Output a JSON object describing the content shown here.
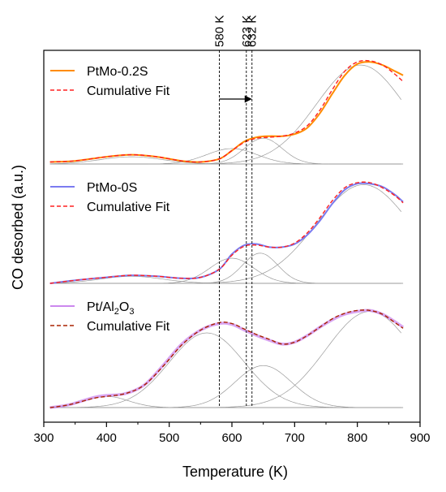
{
  "chart_data": {
    "type": "line",
    "xlabel": "Temperature (K)",
    "ylabel": "CO desorbed (a.u.)",
    "xlim": [
      300,
      900
    ],
    "x_ticks": [
      "300",
      "400",
      "500",
      "600",
      "700",
      "800",
      "900"
    ],
    "y_ticks_labeled": false,
    "grid": false,
    "reference_lines": [
      {
        "x": 580,
        "label": "580 K"
      },
      {
        "x": 623,
        "label": "623 K"
      },
      {
        "x": 632,
        "label": "632 K"
      }
    ],
    "shift_arrow": {
      "from": 580,
      "to": 632
    },
    "panels": [
      {
        "sample": "PtMo-0.2S",
        "legend": [
          {
            "label": "PtMo-0.2S",
            "color": "#ff8c00",
            "style": "solid"
          },
          {
            "label": "Cumulative Fit",
            "color": "#ff2020",
            "style": "dashed"
          }
        ],
        "x": [
          310,
          350,
          400,
          440,
          480,
          520,
          550,
          580,
          600,
          620,
          640,
          660,
          680,
          700,
          720,
          740,
          760,
          780,
          800,
          820,
          840,
          860,
          873
        ],
        "measured": [
          0.02,
          0.03,
          0.07,
          0.09,
          0.07,
          0.03,
          0.02,
          0.05,
          0.13,
          0.22,
          0.26,
          0.27,
          0.27,
          0.29,
          0.35,
          0.49,
          0.68,
          0.86,
          0.97,
          0.99,
          0.96,
          0.9,
          0.86
        ],
        "fit": [
          0.02,
          0.03,
          0.07,
          0.09,
          0.07,
          0.03,
          0.02,
          0.05,
          0.13,
          0.21,
          0.25,
          0.26,
          0.27,
          0.3,
          0.37,
          0.52,
          0.72,
          0.9,
          0.99,
          1.0,
          0.96,
          0.87,
          0.8
        ],
        "components": [
          {
            "center": 440,
            "height": 0.07,
            "width": 50
          },
          {
            "center": 600,
            "height": 0.15,
            "width": 40
          },
          {
            "center": 650,
            "height": 0.25,
            "width": 30
          },
          {
            "center": 805,
            "height": 0.96,
            "width": 70
          }
        ]
      },
      {
        "sample": "PtMo-0S",
        "legend": [
          {
            "label": "PtMo-0S",
            "color": "#7b7bf0",
            "style": "solid"
          },
          {
            "label": "Cumulative Fit",
            "color": "#ff2020",
            "style": "dashed"
          }
        ],
        "x": [
          310,
          350,
          400,
          440,
          480,
          520,
          550,
          580,
          600,
          620,
          640,
          660,
          680,
          700,
          720,
          740,
          760,
          780,
          800,
          820,
          840,
          860,
          873
        ],
        "measured": [
          0.0,
          0.03,
          0.06,
          0.08,
          0.07,
          0.05,
          0.06,
          0.14,
          0.29,
          0.38,
          0.39,
          0.36,
          0.36,
          0.39,
          0.48,
          0.62,
          0.79,
          0.93,
          0.99,
          0.99,
          0.96,
          0.88,
          0.81
        ],
        "fit": [
          0.0,
          0.03,
          0.06,
          0.08,
          0.07,
          0.05,
          0.06,
          0.14,
          0.28,
          0.37,
          0.38,
          0.36,
          0.36,
          0.4,
          0.5,
          0.65,
          0.82,
          0.95,
          1.0,
          1.0,
          0.95,
          0.87,
          0.8
        ],
        "components": [
          {
            "center": 440,
            "height": 0.07,
            "width": 50
          },
          {
            "center": 600,
            "height": 0.25,
            "width": 35
          },
          {
            "center": 645,
            "height": 0.3,
            "width": 28
          },
          {
            "center": 810,
            "height": 0.98,
            "width": 75
          }
        ]
      },
      {
        "sample": "Pt/Al2O3",
        "legend": [
          {
            "label": "Pt/Al",
            "sub": "2",
            "label2": "O",
            "sub2": "3",
            "color": "#cc88ee",
            "style": "solid"
          },
          {
            "label": "Cumulative Fit",
            "color": "#aa2200",
            "style": "dashed"
          }
        ],
        "x": [
          310,
          340,
          380,
          400,
          430,
          460,
          490,
          520,
          550,
          580,
          600,
          620,
          640,
          660,
          680,
          700,
          720,
          740,
          760,
          780,
          800,
          820,
          840,
          860,
          873
        ],
        "measured": [
          0.0,
          0.03,
          0.11,
          0.13,
          0.15,
          0.24,
          0.45,
          0.68,
          0.83,
          0.9,
          0.89,
          0.83,
          0.77,
          0.72,
          0.68,
          0.7,
          0.77,
          0.86,
          0.94,
          1.0,
          1.03,
          1.04,
          1.0,
          0.92,
          0.86
        ],
        "fit": [
          0.0,
          0.03,
          0.1,
          0.12,
          0.15,
          0.24,
          0.44,
          0.67,
          0.83,
          0.91,
          0.9,
          0.84,
          0.78,
          0.73,
          0.68,
          0.7,
          0.77,
          0.86,
          0.95,
          1.01,
          1.04,
          1.04,
          1.0,
          0.91,
          0.85
        ],
        "components": [
          {
            "center": 400,
            "height": 0.12,
            "width": 35
          },
          {
            "center": 560,
            "height": 0.8,
            "width": 60
          },
          {
            "center": 650,
            "height": 0.45,
            "width": 45
          },
          {
            "center": 820,
            "height": 1.03,
            "width": 70
          }
        ]
      }
    ]
  }
}
